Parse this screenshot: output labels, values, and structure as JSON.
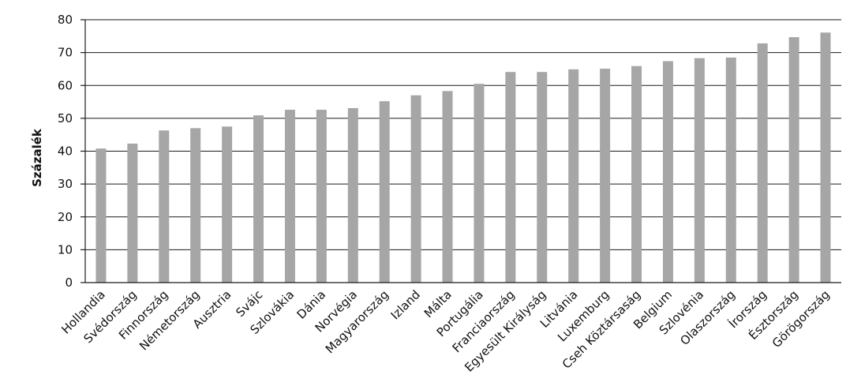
{
  "chart_data": {
    "type": "bar",
    "ylabel": "Százalék",
    "ylim": [
      0,
      80
    ],
    "yticks": [
      0,
      10,
      20,
      30,
      40,
      50,
      60,
      70,
      80
    ],
    "grid": true,
    "categories": [
      "Hollandia",
      "Svédország",
      "Finnország",
      "Németország",
      "Ausztria",
      "Svájc",
      "Szlovákia",
      "Dánia",
      "Norvégia",
      "Magyarország",
      "Izland",
      "Málta",
      "Portugália",
      "Franciaország",
      "Egyesült Királyság",
      "Litvánia",
      "Luxemburg",
      "Cseh Köztársaság",
      "Belgium",
      "Szlovénia",
      "Olaszország",
      "Írország",
      "Észtország",
      "Görögország"
    ],
    "values": [
      40.8,
      42.3,
      46.3,
      47.0,
      47.5,
      50.9,
      52.6,
      52.6,
      53.1,
      55.2,
      57.0,
      58.3,
      60.5,
      64.1,
      64.1,
      64.9,
      65.1,
      65.9,
      67.4,
      68.3,
      68.5,
      72.8,
      74.7,
      76.1
    ],
    "colors": {
      "bar": "#a6a6a6",
      "grid": "#1a1a1a",
      "text": "#111111"
    }
  }
}
